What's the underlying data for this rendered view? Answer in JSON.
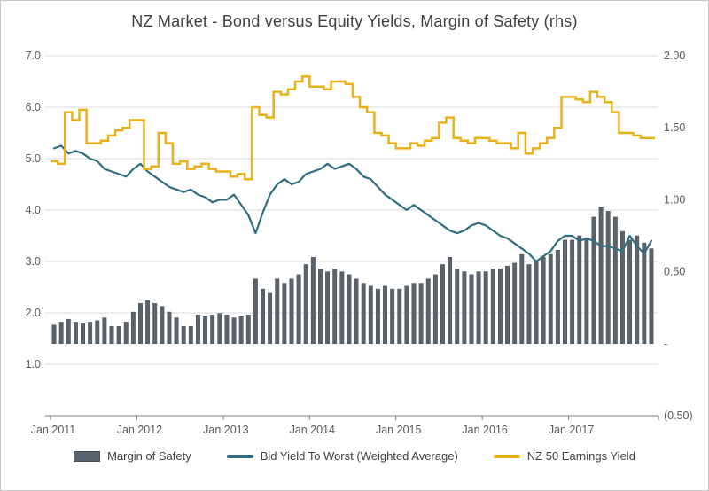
{
  "title": "NZ Market - Bond versus Equity Yields, Margin of Safety (rhs)",
  "legend": [
    {
      "label": "Margin of Safety",
      "type": "bar",
      "color": "#5a636c"
    },
    {
      "label": "Bid Yield To Worst (Weighted Average)",
      "type": "line",
      "color": "#2e6e80"
    },
    {
      "label": "NZ 50 Earnings Yield",
      "type": "line",
      "color": "#eab018"
    }
  ],
  "axes": {
    "left": {
      "ticks": [
        "7.0",
        "6.0",
        "5.0",
        "4.0",
        "3.0",
        "2.0",
        "1.0"
      ],
      "values": [
        7,
        6,
        5,
        4,
        3,
        2,
        1
      ],
      "range": [
        0,
        7
      ]
    },
    "right": {
      "ticks": [
        "2.00",
        "1.50",
        "1.00",
        "0.50",
        "-",
        "(0.50)"
      ],
      "values": [
        2,
        1.5,
        1,
        0.5,
        0,
        -0.5
      ],
      "range": [
        -0.5,
        2
      ]
    },
    "x": {
      "ticks": [
        "Jan 2011",
        "Jan 2012",
        "Jan 2013",
        "Jan 2014",
        "Jan 2015",
        "Jan 2016",
        "Jan 2017"
      ],
      "positions": [
        0,
        12,
        24,
        36,
        48,
        60,
        72
      ]
    }
  },
  "chart_data": {
    "type": "combo",
    "title": "NZ Market - Bond versus Equity Yields, Margin of Safety (rhs)",
    "x_start": "Jan 2011",
    "x_end": "Dec 2017",
    "frequency": "monthly",
    "n_points": 84,
    "left_axis_range": [
      0,
      7
    ],
    "right_axis_range": [
      -0.5,
      2
    ],
    "grid": true,
    "legend_position": "bottom",
    "series": [
      {
        "name": "Margin of Safety",
        "type": "bar",
        "axis": "right",
        "color": "#5a636c",
        "edge_color": "#454d55",
        "values": [
          0.13,
          0.15,
          0.17,
          0.15,
          0.14,
          0.15,
          0.16,
          0.18,
          0.12,
          0.12,
          0.15,
          0.22,
          0.28,
          0.3,
          0.28,
          0.26,
          0.22,
          0.18,
          0.12,
          0.12,
          0.2,
          0.19,
          0.2,
          0.21,
          0.2,
          0.18,
          0.19,
          0.2,
          0.45,
          0.38,
          0.35,
          0.45,
          0.42,
          0.45,
          0.48,
          0.55,
          0.6,
          0.52,
          0.5,
          0.52,
          0.5,
          0.48,
          0.45,
          0.42,
          0.4,
          0.38,
          0.4,
          0.38,
          0.38,
          0.4,
          0.42,
          0.42,
          0.45,
          0.48,
          0.55,
          0.6,
          0.52,
          0.5,
          0.48,
          0.5,
          0.5,
          0.52,
          0.52,
          0.54,
          0.56,
          0.62,
          0.55,
          0.58,
          0.6,
          0.62,
          0.65,
          0.72,
          0.72,
          0.75,
          0.72,
          0.88,
          0.95,
          0.92,
          0.88,
          0.78,
          0.72,
          0.75,
          0.7,
          0.66
        ]
      },
      {
        "name": "Bid Yield To Worst (Weighted Average)",
        "type": "line",
        "axis": "left",
        "color": "#2e6e80",
        "values": [
          5.2,
          5.25,
          5.1,
          5.15,
          5.1,
          5.0,
          4.95,
          4.8,
          4.75,
          4.7,
          4.65,
          4.8,
          4.9,
          4.75,
          4.65,
          4.55,
          4.45,
          4.4,
          4.35,
          4.4,
          4.3,
          4.25,
          4.15,
          4.2,
          4.2,
          4.3,
          4.1,
          3.9,
          3.55,
          3.95,
          4.3,
          4.5,
          4.6,
          4.5,
          4.55,
          4.7,
          4.75,
          4.8,
          4.9,
          4.8,
          4.85,
          4.9,
          4.8,
          4.65,
          4.6,
          4.45,
          4.3,
          4.2,
          4.1,
          4.0,
          4.1,
          4.0,
          3.9,
          3.8,
          3.7,
          3.6,
          3.55,
          3.6,
          3.7,
          3.75,
          3.7,
          3.6,
          3.5,
          3.45,
          3.35,
          3.25,
          3.15,
          3.0,
          3.1,
          3.2,
          3.4,
          3.5,
          3.5,
          3.4,
          3.45,
          3.4,
          3.3,
          3.3,
          3.25,
          3.2,
          3.5,
          3.3,
          3.15,
          3.4
        ]
      },
      {
        "name": "NZ 50 Earnings Yield",
        "type": "step",
        "axis": "left",
        "color": "#eab018",
        "values": [
          4.95,
          4.9,
          5.9,
          5.75,
          5.95,
          5.3,
          5.3,
          5.35,
          5.45,
          5.55,
          5.6,
          5.75,
          5.75,
          4.8,
          4.85,
          5.5,
          5.3,
          4.9,
          4.95,
          4.8,
          4.85,
          4.9,
          4.8,
          4.75,
          4.75,
          4.65,
          4.7,
          4.6,
          6.0,
          5.85,
          5.8,
          6.3,
          6.25,
          6.35,
          6.5,
          6.6,
          6.4,
          6.4,
          6.35,
          6.5,
          6.5,
          6.45,
          6.2,
          6.0,
          5.9,
          5.5,
          5.45,
          5.3,
          5.2,
          5.2,
          5.3,
          5.25,
          5.35,
          5.4,
          5.7,
          5.8,
          5.4,
          5.35,
          5.3,
          5.4,
          5.4,
          5.35,
          5.3,
          5.3,
          5.2,
          5.5,
          5.1,
          5.2,
          5.3,
          5.4,
          5.6,
          6.2,
          6.2,
          6.15,
          6.1,
          6.3,
          6.2,
          6.1,
          5.9,
          5.5,
          5.5,
          5.45,
          5.4,
          5.4
        ]
      }
    ]
  }
}
